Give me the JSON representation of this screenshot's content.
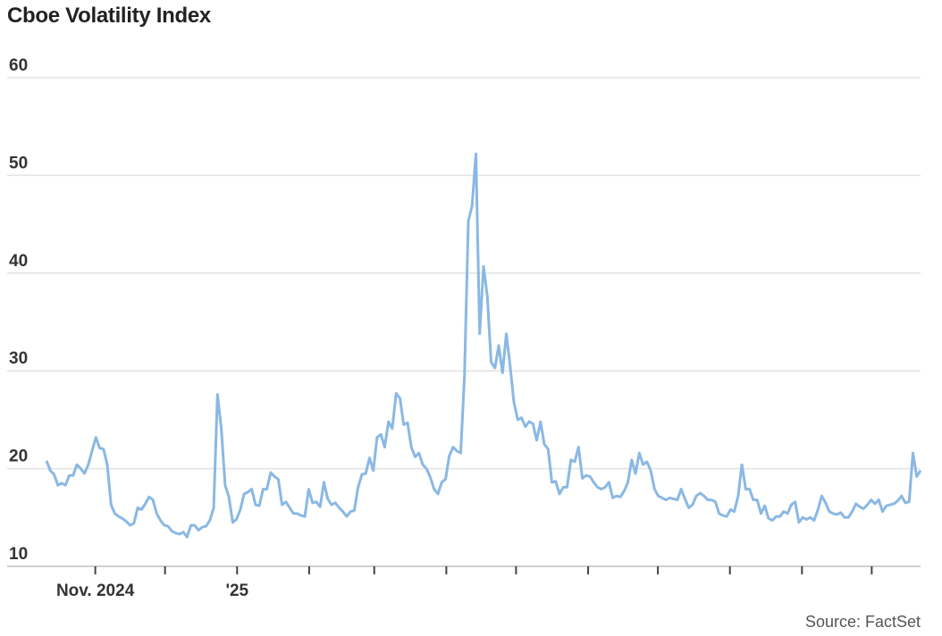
{
  "chart_data": {
    "type": "line",
    "title": "Cboe Volatility Index",
    "source": "Source: FactSet",
    "xlabel": "",
    "ylabel": "",
    "x_range": [
      "2024-10-11",
      "2025-10-22"
    ],
    "x_ticks": [
      "2024-11-01",
      "2024-12-01",
      "2025-01-01",
      "2025-02-01",
      "2025-03-01",
      "2025-04-01",
      "2025-05-01",
      "2025-06-01",
      "2025-07-01",
      "2025-08-01",
      "2025-09-01",
      "2025-10-01"
    ],
    "x_tick_labels": [
      {
        "date": "2024-11-01",
        "label": "Nov. 2024"
      },
      {
        "date": "2025-01-01",
        "label": "'25"
      }
    ],
    "ylim": [
      10,
      60
    ],
    "y_ticks": [
      "10",
      "20",
      "30",
      "40",
      "50",
      "60"
    ],
    "grid": true,
    "line_color": "#8ab8e4",
    "values": [
      20.8,
      19.8,
      19.4,
      18.3,
      18.5,
      18.3,
      19.3,
      19.3,
      20.4,
      20.0,
      19.5,
      20.4,
      21.8,
      23.2,
      22.1,
      22.0,
      20.4,
      16.3,
      15.4,
      15.1,
      14.9,
      14.6,
      14.2,
      14.4,
      16.0,
      15.8,
      16.4,
      17.1,
      16.8,
      15.4,
      14.7,
      14.2,
      14.1,
      13.6,
      13.4,
      13.3,
      13.5,
      13.0,
      14.2,
      14.2,
      13.7,
      14.0,
      14.1,
      14.7,
      16.0,
      27.6,
      24.1,
      18.3,
      17.1,
      14.5,
      14.8,
      15.8,
      17.4,
      17.6,
      17.9,
      16.3,
      16.2,
      17.9,
      17.9,
      19.6,
      19.2,
      18.9,
      16.3,
      16.6,
      16.0,
      15.4,
      15.4,
      15.2,
      15.1,
      17.9,
      16.5,
      16.6,
      16.1,
      18.6,
      16.9,
      16.3,
      16.5,
      16.0,
      15.6,
      15.1,
      15.6,
      15.7,
      18.1,
      19.4,
      19.5,
      21.1,
      19.8,
      23.2,
      23.5,
      22.2,
      24.8,
      24.1,
      27.7,
      27.2,
      24.5,
      24.7,
      22.2,
      21.2,
      21.6,
      20.4,
      20.0,
      19.1,
      17.9,
      17.4,
      18.6,
      18.9,
      21.3,
      22.2,
      21.8,
      21.6,
      29.5,
      45.3,
      46.9,
      52.2,
      33.8,
      40.7,
      37.6,
      30.9,
      30.3,
      32.6,
      29.8,
      33.8,
      30.5,
      26.8,
      25.0,
      25.2,
      24.3,
      24.8,
      24.6,
      22.9,
      24.8,
      22.5,
      22.0,
      18.6,
      18.7,
      17.4,
      18.1,
      18.1,
      20.9,
      20.7,
      22.2,
      19.0,
      19.3,
      19.2,
      18.6,
      18.1,
      17.9,
      18.1,
      18.6,
      17.0,
      17.2,
      17.1,
      17.7,
      18.6,
      20.9,
      19.5,
      21.6,
      20.4,
      20.7,
      19.8,
      17.9,
      17.2,
      17.0,
      16.8,
      17.0,
      16.9,
      16.8,
      17.9,
      16.9,
      16.0,
      16.3,
      17.2,
      17.5,
      17.2,
      16.8,
      16.8,
      16.6,
      15.4,
      15.2,
      15.1,
      15.8,
      15.6,
      17.2,
      20.4,
      17.9,
      17.9,
      16.8,
      16.8,
      15.4,
      16.2,
      14.9,
      14.7,
      15.1,
      15.1,
      15.6,
      15.4,
      16.3,
      16.6,
      14.5,
      15.0,
      14.8,
      15.0,
      14.7,
      15.8,
      17.2,
      16.5,
      15.6,
      15.4,
      15.3,
      15.5,
      15.0,
      15.0,
      15.6,
      16.4,
      16.1,
      15.9,
      16.3,
      16.8,
      16.4,
      16.8,
      15.6,
      16.2,
      16.3,
      16.4,
      16.7,
      17.2,
      16.5,
      16.6,
      21.6,
      19.2,
      19.8
    ]
  }
}
